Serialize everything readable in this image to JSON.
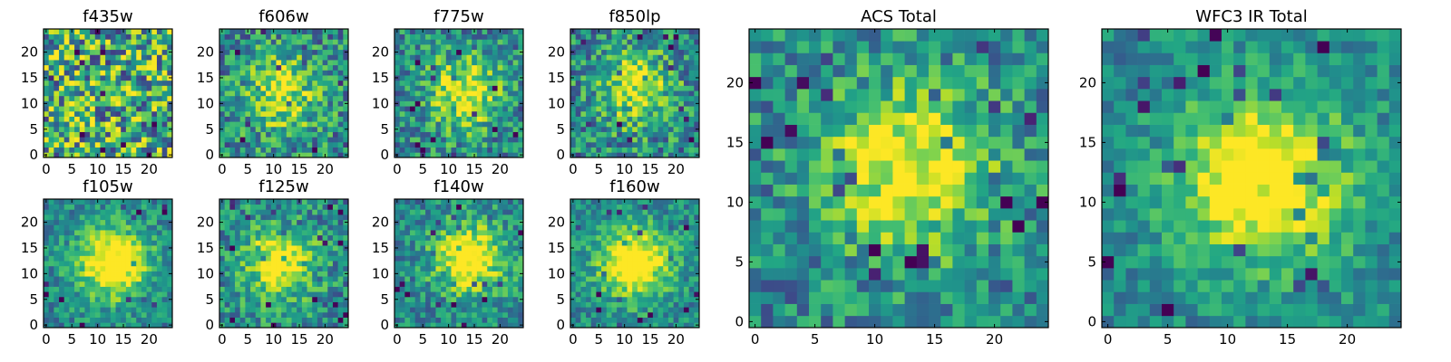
{
  "colormap": "viridis",
  "colors": {
    "low": "#440154",
    "mid": "#21918c",
    "high": "#fde725",
    "frame": "#000000",
    "background": "#ffffff"
  },
  "chart_data": [
    {
      "type": "heatmap",
      "title": "f435w",
      "size": 25,
      "xticks": [
        0,
        5,
        10,
        15,
        20
      ],
      "yticks": [
        0,
        5,
        10,
        15,
        20
      ],
      "pattern": "noise",
      "center": [
        12,
        12
      ],
      "peak": 0.0,
      "noise": 0.9
    },
    {
      "type": "heatmap",
      "title": "f606w",
      "size": 25,
      "xticks": [
        0,
        5,
        10,
        15,
        20
      ],
      "yticks": [
        0,
        5,
        10,
        15,
        20
      ],
      "pattern": "blob",
      "center": [
        12,
        12
      ],
      "peak": 0.35,
      "noise": 0.6
    },
    {
      "type": "heatmap",
      "title": "f775w",
      "size": 25,
      "xticks": [
        0,
        5,
        10,
        15,
        20
      ],
      "yticks": [
        0,
        5,
        10,
        15,
        20
      ],
      "pattern": "blob",
      "center": [
        13,
        12
      ],
      "peak": 0.4,
      "noise": 0.55
    },
    {
      "type": "heatmap",
      "title": "f850lp",
      "size": 25,
      "xticks": [
        0,
        5,
        10,
        15,
        20
      ],
      "yticks": [
        0,
        5,
        10,
        15,
        20
      ],
      "pattern": "blob",
      "center": [
        12,
        13
      ],
      "peak": 0.3,
      "noise": 0.6
    },
    {
      "type": "heatmap",
      "title": "f105w",
      "size": 25,
      "xticks": [
        0,
        5,
        10,
        15,
        20
      ],
      "yticks": [
        0,
        5,
        10,
        15,
        20
      ],
      "pattern": "blob",
      "center": [
        13,
        12
      ],
      "peak": 0.55,
      "noise": 0.4
    },
    {
      "type": "heatmap",
      "title": "f125w",
      "size": 25,
      "xticks": [
        0,
        5,
        10,
        15,
        20
      ],
      "yticks": [
        0,
        5,
        10,
        15,
        20
      ],
      "pattern": "blob",
      "center": [
        11,
        12
      ],
      "peak": 0.45,
      "noise": 0.5
    },
    {
      "type": "heatmap",
      "title": "f140w",
      "size": 25,
      "xticks": [
        0,
        5,
        10,
        15,
        20
      ],
      "yticks": [
        0,
        5,
        10,
        15,
        20
      ],
      "pattern": "blob",
      "center": [
        14,
        13
      ],
      "peak": 0.5,
      "noise": 0.45
    },
    {
      "type": "heatmap",
      "title": "f160w",
      "size": 25,
      "xticks": [
        0,
        5,
        10,
        15,
        20
      ],
      "yticks": [
        0,
        5,
        10,
        15,
        20
      ],
      "pattern": "blob",
      "center": [
        12,
        12
      ],
      "peak": 0.6,
      "noise": 0.4
    },
    {
      "type": "heatmap",
      "title": "ACS Total",
      "size": 25,
      "xticks": [
        0,
        5,
        10,
        15,
        20
      ],
      "yticks": [
        0,
        5,
        10,
        15,
        20
      ],
      "pattern": "blob",
      "center": [
        13,
        13
      ],
      "peak": 0.45,
      "noise": 0.5
    },
    {
      "type": "heatmap",
      "title": "WFC3 IR Total",
      "size": 25,
      "xticks": [
        0,
        5,
        10,
        15,
        20
      ],
      "yticks": [
        0,
        5,
        10,
        15,
        20
      ],
      "pattern": "blob",
      "center": [
        13,
        12
      ],
      "peak": 0.6,
      "noise": 0.35
    }
  ]
}
